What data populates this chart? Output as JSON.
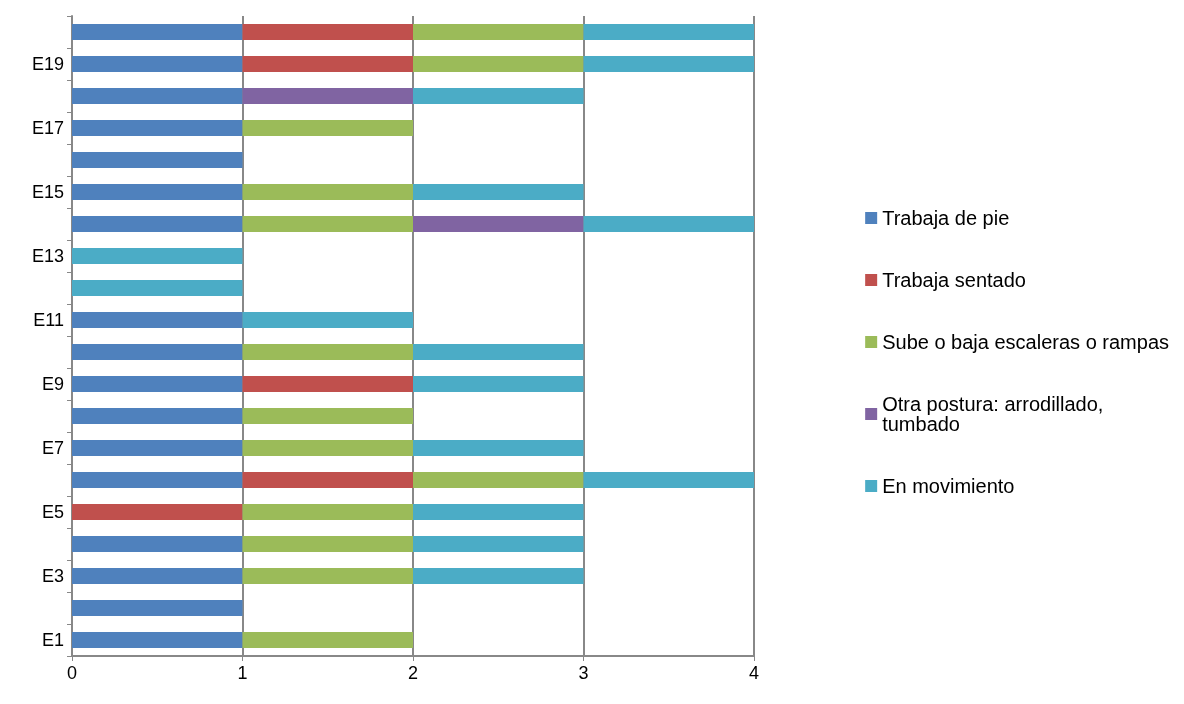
{
  "chart_data": {
    "type": "bar",
    "orientation": "horizontal",
    "stacked": true,
    "categories": [
      null,
      "E19",
      null,
      "E17",
      null,
      "E15",
      null,
      "E13",
      null,
      "E11",
      null,
      "E9",
      null,
      "E7",
      null,
      "E5",
      null,
      "E3",
      null,
      "E1"
    ],
    "series": [
      {
        "name": "Trabaja de pie",
        "color": "#4f81bd",
        "values": [
          1,
          1,
          1,
          1,
          1,
          1,
          1,
          null,
          null,
          1,
          1,
          1,
          1,
          1,
          1,
          null,
          1,
          1,
          1,
          1
        ]
      },
      {
        "name": "Trabaja sentado",
        "color": "#c0504d",
        "values": [
          1,
          1,
          null,
          null,
          null,
          null,
          null,
          null,
          null,
          null,
          null,
          1,
          null,
          null,
          1,
          1,
          null,
          null,
          null,
          null
        ]
      },
      {
        "name": "Sube o baja escaleras o rampas",
        "color": "#9bbb59",
        "values": [
          1,
          1,
          null,
          1,
          null,
          1,
          1,
          null,
          null,
          null,
          1,
          null,
          1,
          1,
          1,
          1,
          1,
          1,
          null,
          1
        ]
      },
      {
        "name": "Otra postura: arrodillado, tumbado",
        "color": "#8064a2",
        "values": [
          null,
          null,
          1,
          null,
          null,
          null,
          1,
          null,
          null,
          null,
          null,
          null,
          null,
          null,
          null,
          null,
          null,
          null,
          null,
          null
        ]
      },
      {
        "name": "En movimiento",
        "color": "#4bacc6",
        "values": [
          1,
          1,
          1,
          null,
          null,
          1,
          1,
          1,
          1,
          1,
          1,
          1,
          null,
          1,
          1,
          1,
          1,
          1,
          null,
          null
        ]
      }
    ],
    "xlim": [
      0,
      4
    ],
    "xticks": [
      0,
      1,
      2,
      3,
      4
    ],
    "grid": "x",
    "legend": "right"
  }
}
